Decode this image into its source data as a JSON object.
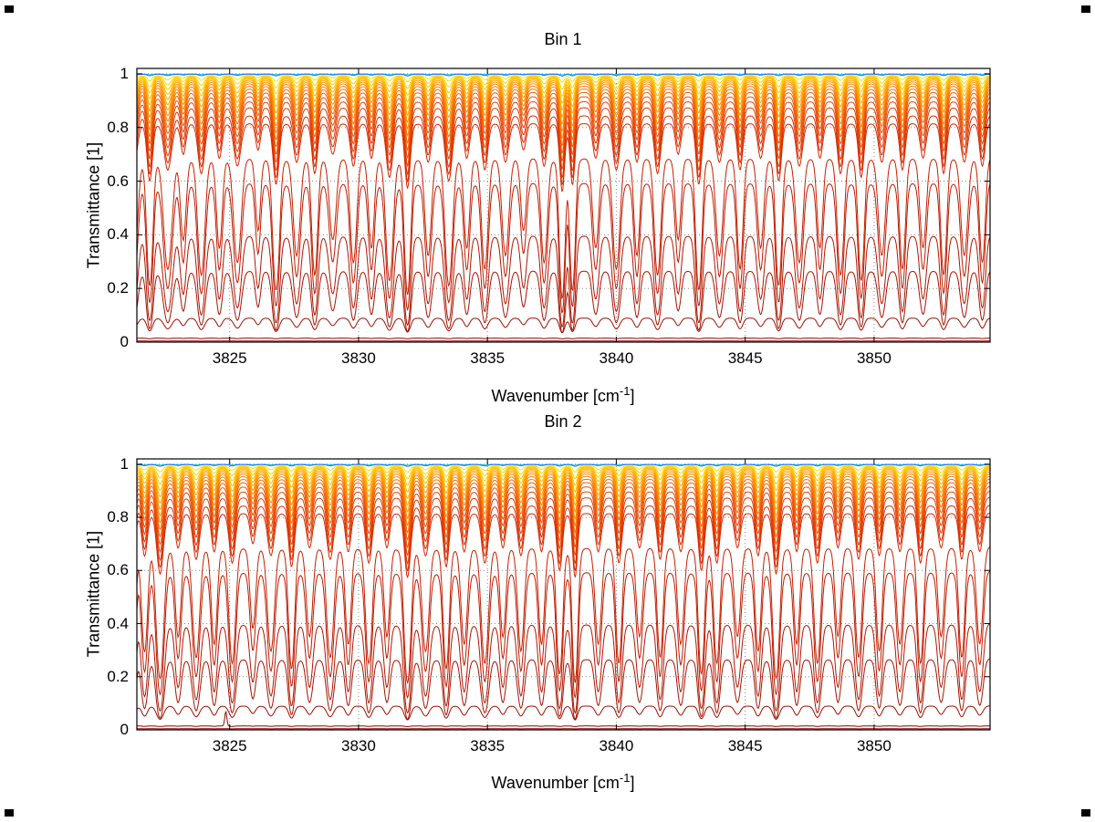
{
  "figure": {
    "background": "#ffffff"
  },
  "chart_data": [
    {
      "type": "line",
      "title": "Bin 1",
      "xlabel": "Wavenumber [cm^-1]",
      "xlabel_parts": {
        "prefix": "Wavenumber [cm",
        "sup": "-1",
        "suffix": "]"
      },
      "ylabel": "Transmittance [1]",
      "xlim": [
        3821.4,
        3854.5
      ],
      "ylim": [
        0,
        1.02
      ],
      "xticks": [
        3825,
        3830,
        3835,
        3840,
        3845,
        3850
      ],
      "xtick_labels": [
        "3825",
        "3830",
        "3835",
        "3840",
        "3845",
        "3850"
      ],
      "yticks": [
        0,
        0.2,
        0.4,
        0.6,
        0.8,
        1
      ],
      "ytick_labels": [
        "0",
        "0.2",
        "0.4",
        "0.6",
        "0.8",
        "1"
      ],
      "grid": "dotted",
      "legend": "none",
      "series_note": "Stack of transmittance spectra T(x)=exp(-(a+b*A(x))) sharing absorption profile A built from absorption_lines [center, strength, width]; T = approx continuum transmittance of each curve",
      "series": [
        {
          "c": "#00c8dc",
          "a": 0.0005,
          "b": 0.002,
          "T": 0.9995
        },
        {
          "c": "#2a6cff",
          "a": 0.0015,
          "b": 0.004,
          "T": 0.9985
        },
        {
          "c": "#ffe000",
          "a": 0.006,
          "b": 0.015,
          "T": 0.994
        },
        {
          "c": "#ffd400",
          "a": 0.008,
          "b": 0.03,
          "T": 0.992
        },
        {
          "c": "#ffc800",
          "a": 0.01,
          "b": 0.045,
          "T": 0.99
        },
        {
          "c": "#ffbc00",
          "a": 0.013,
          "b": 0.06,
          "T": 0.987
        },
        {
          "c": "#ffb000",
          "a": 0.017,
          "b": 0.075,
          "T": 0.983
        },
        {
          "c": "#ffa400",
          "a": 0.022,
          "b": 0.09,
          "T": 0.978
        },
        {
          "c": "#ff9800",
          "a": 0.028,
          "b": 0.105,
          "T": 0.972
        },
        {
          "c": "#ff8c00",
          "a": 0.035,
          "b": 0.12,
          "T": 0.966
        },
        {
          "c": "#ff8000",
          "a": 0.044,
          "b": 0.135,
          "T": 0.957
        },
        {
          "c": "#fa7000",
          "a": 0.055,
          "b": 0.15,
          "T": 0.946
        },
        {
          "c": "#f46000",
          "a": 0.068,
          "b": 0.165,
          "T": 0.934
        },
        {
          "c": "#ee5200",
          "a": 0.085,
          "b": 0.18,
          "T": 0.918
        },
        {
          "c": "#e84600",
          "a": 0.105,
          "b": 0.195,
          "T": 0.9
        },
        {
          "c": "#e23a00",
          "a": 0.13,
          "b": 0.21,
          "T": 0.878
        },
        {
          "c": "#dc3000",
          "a": 0.165,
          "b": 0.215,
          "T": 0.848
        },
        {
          "c": "#d62800",
          "a": 0.2,
          "b": 0.22,
          "T": 0.819
        },
        {
          "c": "#c62000",
          "a": 0.36,
          "b": 0.85,
          "T": 0.698
        },
        {
          "c": "#bc1c00",
          "a": 0.5,
          "b": 1.0,
          "T": 0.607
        },
        {
          "c": "#b01800",
          "a": 0.9,
          "b": 1.15,
          "T": 0.407
        },
        {
          "c": "#a61400",
          "a": 1.3,
          "b": 1.2,
          "T": 0.273
        },
        {
          "c": "#9c1000",
          "a": 2.4,
          "b": 0.55,
          "T": 0.091
        },
        {
          "c": "#8e0800",
          "a": 4.2,
          "b": 0.12,
          "T": 0.015
        },
        {
          "c": "#840400",
          "a": 5.5,
          "b": 0.05,
          "T": 0.004
        }
      ],
      "absorption_lines": [
        [
          3821.3,
          0.9,
          0.12
        ],
        [
          3821.9,
          1.4,
          0.1
        ],
        [
          3822.6,
          1.1,
          0.14
        ],
        [
          3823.2,
          0.7,
          0.1
        ],
        [
          3823.9,
          1.2,
          0.12
        ],
        [
          3824.6,
          0.8,
          0.1
        ],
        [
          3825.3,
          1.0,
          0.13
        ],
        [
          3826.1,
          0.6,
          0.09
        ],
        [
          3826.8,
          1.5,
          0.11
        ],
        [
          3827.6,
          0.9,
          0.12
        ],
        [
          3828.3,
          1.2,
          0.1
        ],
        [
          3829.0,
          0.7,
          0.12
        ],
        [
          3829.8,
          1.0,
          0.11
        ],
        [
          3830.5,
          0.8,
          0.1
        ],
        [
          3831.2,
          1.3,
          0.12
        ],
        [
          3831.9,
          1.6,
          0.1
        ],
        [
          3832.7,
          0.9,
          0.11
        ],
        [
          3833.5,
          1.4,
          0.12
        ],
        [
          3834.2,
          0.8,
          0.1
        ],
        [
          3834.9,
          1.1,
          0.11
        ],
        [
          3835.7,
          0.9,
          0.12
        ],
        [
          3836.4,
          0.6,
          0.1
        ],
        [
          3837.2,
          1.0,
          0.11
        ],
        [
          3837.9,
          1.7,
          0.09
        ],
        [
          3838.3,
          1.5,
          0.09
        ],
        [
          3839.2,
          0.8,
          0.11
        ],
        [
          3840.0,
          1.1,
          0.12
        ],
        [
          3840.8,
          0.9,
          0.1
        ],
        [
          3841.6,
          1.2,
          0.11
        ],
        [
          3842.4,
          0.7,
          0.1
        ],
        [
          3843.2,
          1.5,
          0.1
        ],
        [
          3844.0,
          0.9,
          0.12
        ],
        [
          3844.8,
          1.1,
          0.1
        ],
        [
          3845.6,
          0.8,
          0.11
        ],
        [
          3846.3,
          1.4,
          0.1
        ],
        [
          3847.1,
          1.0,
          0.12
        ],
        [
          3847.9,
          0.8,
          0.1
        ],
        [
          3848.7,
          1.2,
          0.11
        ],
        [
          3849.5,
          1.3,
          0.1
        ],
        [
          3850.3,
          0.9,
          0.12
        ],
        [
          3851.1,
          1.1,
          0.1
        ],
        [
          3851.9,
          0.8,
          0.11
        ],
        [
          3852.7,
          1.2,
          0.1
        ],
        [
          3853.5,
          0.9,
          0.12
        ],
        [
          3854.2,
          1.0,
          0.1
        ]
      ]
    },
    {
      "type": "line",
      "title": "Bin 2",
      "xlabel": "Wavenumber [cm^-1]",
      "xlabel_parts": {
        "prefix": "Wavenumber [cm",
        "sup": "-1",
        "suffix": "]"
      },
      "ylabel": "Transmittance [1]",
      "xlim": [
        3821.4,
        3854.5
      ],
      "ylim": [
        0,
        1.02
      ],
      "xticks": [
        3825,
        3830,
        3835,
        3840,
        3845,
        3850
      ],
      "xtick_labels": [
        "3825",
        "3830",
        "3835",
        "3840",
        "3845",
        "3850"
      ],
      "yticks": [
        0,
        0.2,
        0.4,
        0.6,
        0.8,
        1
      ],
      "ytick_labels": [
        "0",
        "0.2",
        "0.4",
        "0.6",
        "0.8",
        "1"
      ],
      "grid": "dotted",
      "legend": "none",
      "spike": {
        "x": 3824.85,
        "height": 0.055,
        "width": 0.04,
        "series": 23
      },
      "series": [
        {
          "c": "#00c8dc",
          "a": 0.0005,
          "b": 0.002,
          "T": 0.9995
        },
        {
          "c": "#2a6cff",
          "a": 0.0015,
          "b": 0.004,
          "T": 0.9985
        },
        {
          "c": "#ffe000",
          "a": 0.006,
          "b": 0.015,
          "T": 0.994
        },
        {
          "c": "#ffd400",
          "a": 0.008,
          "b": 0.03,
          "T": 0.992
        },
        {
          "c": "#ffc800",
          "a": 0.01,
          "b": 0.045,
          "T": 0.99
        },
        {
          "c": "#ffbc00",
          "a": 0.013,
          "b": 0.06,
          "T": 0.987
        },
        {
          "c": "#ffb000",
          "a": 0.017,
          "b": 0.075,
          "T": 0.983
        },
        {
          "c": "#ffa400",
          "a": 0.022,
          "b": 0.09,
          "T": 0.978
        },
        {
          "c": "#ff9800",
          "a": 0.028,
          "b": 0.105,
          "T": 0.972
        },
        {
          "c": "#ff8c00",
          "a": 0.035,
          "b": 0.12,
          "T": 0.966
        },
        {
          "c": "#ff8000",
          "a": 0.044,
          "b": 0.135,
          "T": 0.957
        },
        {
          "c": "#fa7000",
          "a": 0.055,
          "b": 0.15,
          "T": 0.946
        },
        {
          "c": "#f46000",
          "a": 0.068,
          "b": 0.165,
          "T": 0.934
        },
        {
          "c": "#ee5200",
          "a": 0.085,
          "b": 0.18,
          "T": 0.918
        },
        {
          "c": "#e84600",
          "a": 0.105,
          "b": 0.195,
          "T": 0.9
        },
        {
          "c": "#e23a00",
          "a": 0.13,
          "b": 0.21,
          "T": 0.878
        },
        {
          "c": "#dc3000",
          "a": 0.165,
          "b": 0.215,
          "T": 0.848
        },
        {
          "c": "#d62800",
          "a": 0.2,
          "b": 0.22,
          "T": 0.819
        },
        {
          "c": "#c62000",
          "a": 0.36,
          "b": 0.85,
          "T": 0.698
        },
        {
          "c": "#bc1c00",
          "a": 0.5,
          "b": 1.0,
          "T": 0.607
        },
        {
          "c": "#b01800",
          "a": 0.9,
          "b": 1.15,
          "T": 0.407
        },
        {
          "c": "#a61400",
          "a": 1.3,
          "b": 1.2,
          "T": 0.273
        },
        {
          "c": "#9c1000",
          "a": 2.4,
          "b": 0.55,
          "T": 0.091
        },
        {
          "c": "#8e0800",
          "a": 4.2,
          "b": 0.12,
          "T": 0.015
        },
        {
          "c": "#840400",
          "a": 5.5,
          "b": 0.05,
          "T": 0.004
        }
      ],
      "absorption_lines": [
        [
          3821.2,
          1.3,
          0.11
        ],
        [
          3821.7,
          1.0,
          0.1
        ],
        [
          3822.3,
          1.5,
          0.12
        ],
        [
          3823.0,
          0.8,
          0.1
        ],
        [
          3823.7,
          1.1,
          0.12
        ],
        [
          3824.4,
          0.9,
          0.1
        ],
        [
          3825.1,
          1.2,
          0.11
        ],
        [
          3825.9,
          0.7,
          0.1
        ],
        [
          3826.6,
          1.0,
          0.12
        ],
        [
          3827.4,
          1.3,
          0.1
        ],
        [
          3828.1,
          0.8,
          0.11
        ],
        [
          3828.9,
          1.1,
          0.12
        ],
        [
          3829.6,
          0.9,
          0.1
        ],
        [
          3830.4,
          1.2,
          0.11
        ],
        [
          3831.1,
          0.8,
          0.1
        ],
        [
          3831.9,
          1.6,
          0.11
        ],
        [
          3832.6,
          1.0,
          0.12
        ],
        [
          3833.4,
          1.3,
          0.1
        ],
        [
          3834.1,
          0.9,
          0.11
        ],
        [
          3834.9,
          1.2,
          0.12
        ],
        [
          3835.6,
          0.8,
          0.1
        ],
        [
          3836.3,
          1.0,
          0.11
        ],
        [
          3837.1,
          0.9,
          0.1
        ],
        [
          3837.8,
          1.4,
          0.1
        ],
        [
          3838.4,
          1.6,
          0.09
        ],
        [
          3839.3,
          0.9,
          0.11
        ],
        [
          3840.1,
          1.2,
          0.1
        ],
        [
          3840.9,
          0.8,
          0.11
        ],
        [
          3841.7,
          1.1,
          0.1
        ],
        [
          3842.5,
          0.9,
          0.11
        ],
        [
          3843.3,
          1.4,
          0.1
        ],
        [
          3843.9,
          1.2,
          0.1
        ],
        [
          3844.7,
          0.8,
          0.11
        ],
        [
          3845.5,
          1.0,
          0.1
        ],
        [
          3846.2,
          1.5,
          0.11
        ],
        [
          3847.0,
          0.9,
          0.1
        ],
        [
          3847.8,
          1.2,
          0.11
        ],
        [
          3848.6,
          0.8,
          0.1
        ],
        [
          3849.4,
          1.1,
          0.11
        ],
        [
          3850.2,
          1.0,
          0.1
        ],
        [
          3851.0,
          0.9,
          0.11
        ],
        [
          3851.8,
          1.2,
          0.1
        ],
        [
          3852.6,
          0.8,
          0.11
        ],
        [
          3853.4,
          1.1,
          0.1
        ],
        [
          3854.1,
          0.9,
          0.11
        ]
      ]
    }
  ]
}
